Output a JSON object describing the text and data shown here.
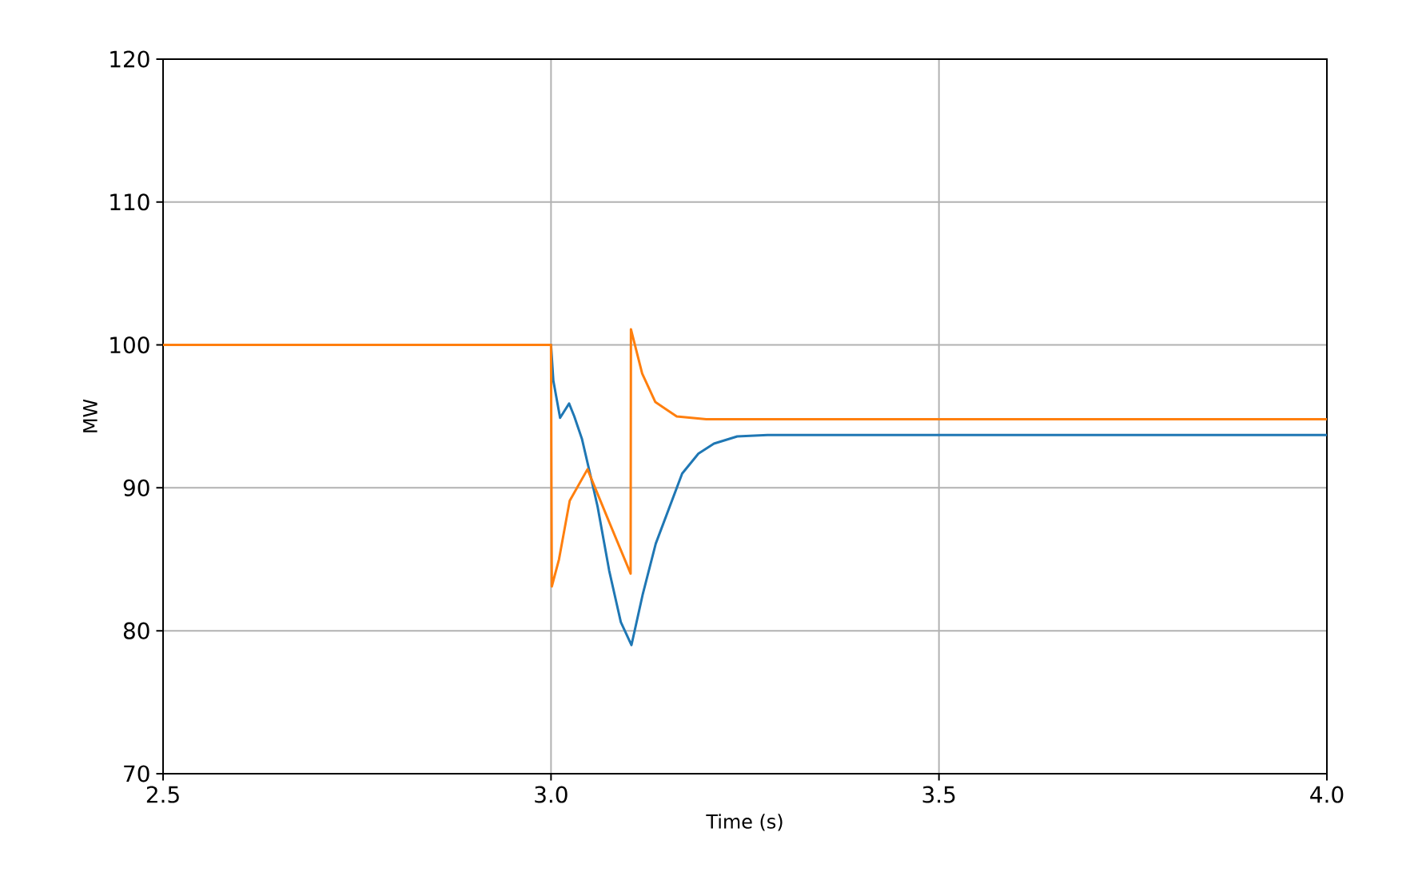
{
  "chart_data": {
    "type": "line",
    "xlabel": "Time (s)",
    "ylabel": "MW",
    "xlim": [
      2.5,
      4.0
    ],
    "ylim": [
      70,
      120
    ],
    "xticks": [
      {
        "value": 2.5,
        "label": "2.5"
      },
      {
        "value": 3.0,
        "label": "3.0"
      },
      {
        "value": 3.5,
        "label": "3.5"
      },
      {
        "value": 4.0,
        "label": "4.0"
      }
    ],
    "yticks": [
      70,
      80,
      90,
      100,
      110,
      120
    ],
    "grid": true,
    "series": [
      {
        "color": "#1f77b4",
        "x": [
          2.5,
          3.0,
          3.003,
          3.0117,
          3.0233,
          3.03,
          3.04,
          3.052,
          3.06,
          3.075,
          3.09,
          3.1037,
          3.118,
          3.135,
          3.169,
          3.19,
          3.21,
          3.24,
          3.279,
          4.0
        ],
        "values": [
          100,
          100,
          97.5,
          94.9,
          95.9,
          95.0,
          93.4,
          90.6,
          88.7,
          84.2,
          80.6,
          79.0,
          82.5,
          86.1,
          91.0,
          92.4,
          93.1,
          93.6,
          93.7,
          93.7
        ]
      },
      {
        "color": "#ff7f0e",
        "x": [
          2.5,
          3.0,
          3.001,
          3.0103,
          3.0241,
          3.047,
          3.072,
          3.1026,
          3.103,
          3.1175,
          3.1345,
          3.162,
          3.2,
          4.0
        ],
        "values": [
          100,
          100,
          83.1,
          85.0,
          89.1,
          91.3,
          88.0,
          84.0,
          101.1,
          98.0,
          96.0,
          95.0,
          94.8,
          94.8
        ]
      }
    ]
  }
}
